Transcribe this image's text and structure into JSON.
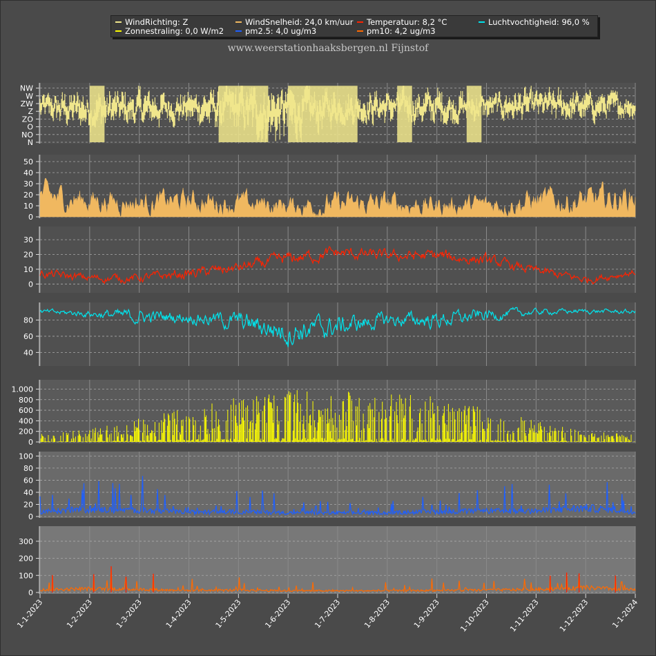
{
  "title": "www.weerstationhaaksbergen.nl Fijnstof",
  "legend": [
    {
      "label": "WindRichting: Z",
      "color": "#f0e68c"
    },
    {
      "label": "WindSnelheid: 24,0 km/uur",
      "color": "#f0b860"
    },
    {
      "label": "Temperatuur: 8,2 °C",
      "color": "#ff2200"
    },
    {
      "label": "Luchtvochtigheid: 96,0 %",
      "color": "#00e5ee"
    },
    {
      "label": "Zonnestraling: 0,0 W/m2",
      "color": "#ffff00"
    },
    {
      "label": "pm2.5: 4,0 ug/m3",
      "color": "#1e5fff"
    },
    {
      "label": "pm10: 4,2 ug/m3",
      "color": "#ff6a00"
    }
  ],
  "chart_data": {
    "type": "line",
    "x_ticks": [
      "1-1-2023",
      "1-2-2023",
      "1-3-2023",
      "1-4-2023",
      "1-5-2023",
      "1-6-2023",
      "1-7-2023",
      "1-8-2023",
      "1-9-2023",
      "1-10-2023",
      "1-11-2023",
      "1-12-2023",
      "1-1-2024"
    ],
    "x_range": [
      "1-1-2023",
      "1-1-2024"
    ],
    "grid": true,
    "panels": [
      {
        "name": "WindRichting",
        "color": "#f0e68c",
        "style": "bar",
        "ylim": [
          0,
          7.5
        ],
        "ticks": [
          {
            "v": 0,
            "label": "N"
          },
          {
            "v": 1,
            "label": "NO"
          },
          {
            "v": 2,
            "label": "O"
          },
          {
            "v": 3,
            "label": "ZO"
          },
          {
            "v": 4,
            "label": "Z"
          },
          {
            "v": 5,
            "label": "ZW"
          },
          {
            "v": 6,
            "label": "W"
          },
          {
            "v": 7,
            "label": "NW"
          }
        ],
        "knots": [
          {
            "m": 0,
            "base": 4.5,
            "amp": 1.8
          },
          {
            "m": 1,
            "base": 4.2,
            "amp": 2.6
          },
          {
            "m": 2,
            "base": 4.3,
            "amp": 2.4
          },
          {
            "m": 3,
            "base": 4.5,
            "amp": 2.0
          },
          {
            "m": 4,
            "base": 4.2,
            "amp": 3.2
          },
          {
            "m": 4.7,
            "base": 3.8,
            "amp": 4.0
          },
          {
            "m": 5.5,
            "base": 4.0,
            "amp": 3.2
          },
          {
            "m": 6,
            "base": 4.5,
            "amp": 2.2
          },
          {
            "m": 7,
            "base": 4.6,
            "amp": 2.2
          },
          {
            "m": 8,
            "base": 4.5,
            "amp": 2.4
          },
          {
            "m": 9,
            "base": 4.6,
            "amp": 1.8
          },
          {
            "m": 10,
            "base": 4.8,
            "amp": 2.0
          },
          {
            "m": 11,
            "base": 4.6,
            "amp": 2.0
          },
          {
            "m": 12,
            "base": 4.8,
            "amp": 1.6
          }
        ]
      },
      {
        "name": "WindSnelheid",
        "color": "#f0b860",
        "style": "area",
        "ylim": [
          0,
          55
        ],
        "ticks": [
          {
            "v": 0,
            "label": "0"
          },
          {
            "v": 10,
            "label": "10"
          },
          {
            "v": 20,
            "label": "20"
          },
          {
            "v": 30,
            "label": "30"
          },
          {
            "v": 40,
            "label": "40"
          },
          {
            "v": 50,
            "label": "50"
          }
        ],
        "knots": [
          {
            "m": 0,
            "base": 18,
            "amp": 18
          },
          {
            "m": 1,
            "base": 15,
            "amp": 15
          },
          {
            "m": 2,
            "base": 13,
            "amp": 14
          },
          {
            "m": 3,
            "base": 14,
            "amp": 15
          },
          {
            "m": 4,
            "base": 12,
            "amp": 14
          },
          {
            "m": 5,
            "base": 10,
            "amp": 12
          },
          {
            "m": 6,
            "base": 11,
            "amp": 15
          },
          {
            "m": 7,
            "base": 12,
            "amp": 14
          },
          {
            "m": 8,
            "base": 10,
            "amp": 13
          },
          {
            "m": 9,
            "base": 11,
            "amp": 12
          },
          {
            "m": 10,
            "base": 14,
            "amp": 16
          },
          {
            "m": 11,
            "base": 14,
            "amp": 16
          },
          {
            "m": 12,
            "base": 18,
            "amp": 18
          }
        ]
      },
      {
        "name": "Temperatuur",
        "color": "#ff2200",
        "style": "line",
        "ylim": [
          -5,
          38
        ],
        "ticks": [
          {
            "v": 0,
            "label": "0"
          },
          {
            "v": 10,
            "label": "10"
          },
          {
            "v": 20,
            "label": "20"
          },
          {
            "v": 30,
            "label": "30"
          }
        ],
        "knots": [
          {
            "m": 0,
            "base": 7,
            "amp": 4
          },
          {
            "m": 1,
            "base": 4,
            "amp": 4
          },
          {
            "m": 2,
            "base": 4,
            "amp": 4
          },
          {
            "m": 3,
            "base": 7,
            "amp": 5
          },
          {
            "m": 4,
            "base": 11,
            "amp": 5
          },
          {
            "m": 5,
            "base": 17,
            "amp": 6
          },
          {
            "m": 6,
            "base": 21,
            "amp": 6
          },
          {
            "m": 7,
            "base": 19,
            "amp": 5
          },
          {
            "m": 8,
            "base": 19,
            "amp": 6
          },
          {
            "m": 9,
            "base": 16,
            "amp": 5
          },
          {
            "m": 10,
            "base": 9,
            "amp": 4
          },
          {
            "m": 11,
            "base": 3,
            "amp": 4
          },
          {
            "m": 12,
            "base": 8,
            "amp": 3
          }
        ]
      },
      {
        "name": "Luchtvochtigheid",
        "color": "#00e5ee",
        "style": "line",
        "ylim": [
          25,
          100
        ],
        "ticks": [
          {
            "v": 40,
            "label": "40"
          },
          {
            "v": 60,
            "label": "60"
          },
          {
            "v": 80,
            "label": "80"
          }
        ],
        "knots": [
          {
            "m": 0,
            "base": 90,
            "amp": 4
          },
          {
            "m": 1,
            "base": 88,
            "amp": 6
          },
          {
            "m": 2,
            "base": 84,
            "amp": 12
          },
          {
            "m": 3,
            "base": 84,
            "amp": 10
          },
          {
            "m": 4,
            "base": 78,
            "amp": 16
          },
          {
            "m": 5,
            "base": 66,
            "amp": 22
          },
          {
            "m": 6,
            "base": 72,
            "amp": 18
          },
          {
            "m": 7,
            "base": 80,
            "amp": 12
          },
          {
            "m": 8,
            "base": 80,
            "amp": 14
          },
          {
            "m": 9,
            "base": 86,
            "amp": 10
          },
          {
            "m": 10,
            "base": 90,
            "amp": 5
          },
          {
            "m": 11,
            "base": 91,
            "amp": 4
          },
          {
            "m": 12,
            "base": 90,
            "amp": 4
          }
        ]
      },
      {
        "name": "Zonnestraling",
        "color": "#ffff00",
        "style": "spikes",
        "ylim": [
          0,
          1150
        ],
        "ticks": [
          {
            "v": 0,
            "label": "0"
          },
          {
            "v": 200,
            "label": "200"
          },
          {
            "v": 400,
            "label": "400"
          },
          {
            "v": 600,
            "label": "600"
          },
          {
            "v": 800,
            "label": "800"
          },
          {
            "v": 1000,
            "label": "1.000"
          }
        ],
        "knots": [
          {
            "m": 0,
            "base": 0,
            "amp": 150
          },
          {
            "m": 1,
            "base": 0,
            "amp": 250
          },
          {
            "m": 2,
            "base": 0,
            "amp": 450
          },
          {
            "m": 3,
            "base": 0,
            "amp": 650
          },
          {
            "m": 4,
            "base": 0,
            "amp": 850
          },
          {
            "m": 5,
            "base": 0,
            "amp": 1000
          },
          {
            "m": 6,
            "base": 0,
            "amp": 1000
          },
          {
            "m": 7,
            "base": 0,
            "amp": 950
          },
          {
            "m": 8,
            "base": 0,
            "amp": 850
          },
          {
            "m": 9,
            "base": 0,
            "amp": 650
          },
          {
            "m": 10,
            "base": 0,
            "amp": 400
          },
          {
            "m": 11,
            "base": 0,
            "amp": 200
          },
          {
            "m": 12,
            "base": 0,
            "amp": 150
          }
        ]
      },
      {
        "name": "pm2.5",
        "color": "#1e5fff",
        "style": "pollution",
        "ylim": [
          0,
          105
        ],
        "ticks": [
          {
            "v": 0,
            "label": "0"
          },
          {
            "v": 20,
            "label": "20"
          },
          {
            "v": 40,
            "label": "40"
          },
          {
            "v": 60,
            "label": "60"
          },
          {
            "v": 80,
            "label": "80"
          },
          {
            "v": 100,
            "label": "100"
          }
        ],
        "knots": [
          {
            "m": 0,
            "base": 8,
            "amp": 30
          },
          {
            "m": 1,
            "base": 12,
            "amp": 55
          },
          {
            "m": 2,
            "base": 10,
            "amp": 40
          },
          {
            "m": 3,
            "base": 7,
            "amp": 30
          },
          {
            "m": 4,
            "base": 8,
            "amp": 35
          },
          {
            "m": 5,
            "base": 6,
            "amp": 20
          },
          {
            "m": 6,
            "base": 6,
            "amp": 20
          },
          {
            "m": 7,
            "base": 6,
            "amp": 20
          },
          {
            "m": 8,
            "base": 8,
            "amp": 30
          },
          {
            "m": 9,
            "base": 9,
            "amp": 40
          },
          {
            "m": 10,
            "base": 9,
            "amp": 45
          },
          {
            "m": 11,
            "base": 14,
            "amp": 55
          },
          {
            "m": 12,
            "base": 8,
            "amp": 30
          }
        ]
      },
      {
        "name": "pm10",
        "color": "#ff6a00",
        "peak_color": "#ff1a00",
        "style": "pollution",
        "ylim": [
          0,
          380
        ],
        "ticks": [
          {
            "v": 0,
            "label": "0"
          },
          {
            "v": 100,
            "label": "100"
          },
          {
            "v": 200,
            "label": "200"
          },
          {
            "v": 300,
            "label": "300"
          }
        ],
        "knots": [
          {
            "m": 0,
            "base": 15,
            "amp": 60
          },
          {
            "m": 1,
            "base": 22,
            "amp": 90
          },
          {
            "m": 2,
            "base": 18,
            "amp": 70
          },
          {
            "m": 3,
            "base": 12,
            "amp": 40
          },
          {
            "m": 4,
            "base": 14,
            "amp": 55
          },
          {
            "m": 5,
            "base": 10,
            "amp": 35
          },
          {
            "m": 6,
            "base": 10,
            "amp": 35
          },
          {
            "m": 7,
            "base": 10,
            "amp": 35
          },
          {
            "m": 8,
            "base": 12,
            "amp": 45
          },
          {
            "m": 9,
            "base": 14,
            "amp": 55
          },
          {
            "m": 10,
            "base": 18,
            "amp": 70
          },
          {
            "m": 11,
            "base": 28,
            "amp": 110
          },
          {
            "m": 12,
            "base": 15,
            "amp": 60
          }
        ]
      }
    ]
  }
}
